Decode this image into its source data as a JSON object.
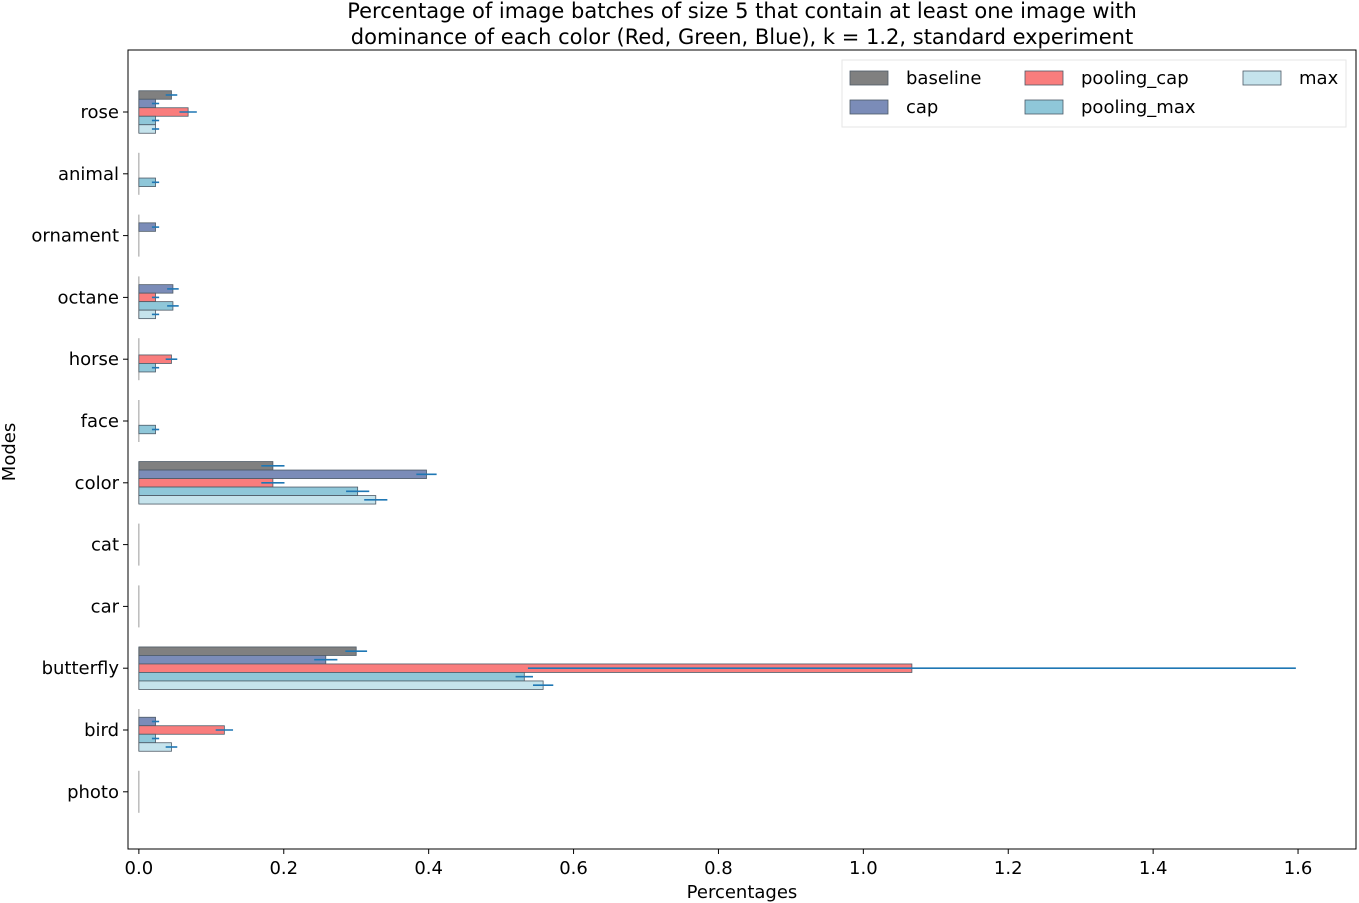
{
  "chart_data": {
    "type": "bar",
    "orientation": "horizontal",
    "title": "Percentage of image batches of size 5 that contain at least one image with dominance of each color (Red, Green, Blue), k = 1.2, standard experiment",
    "title_lines": [
      "Percentage of image batches of size 5 that contain at least one image with",
      "dominance of each color (Red, Green, Blue), k = 1.2, standard experiment"
    ],
    "xlabel": "Percentages",
    "ylabel": "Modes",
    "xlim": [
      -0.015,
      1.68
    ],
    "xticks": [
      0.0,
      0.2,
      0.4,
      0.6,
      0.8,
      1.0,
      1.2,
      1.4,
      1.6
    ],
    "xtick_labels": [
      "0.0",
      "0.2",
      "0.4",
      "0.6",
      "0.8",
      "1.0",
      "1.2",
      "1.4",
      "1.6"
    ],
    "grid": false,
    "legend_position": "top-right",
    "legend_columns": 3,
    "categories": [
      "rose",
      "animal",
      "ornament",
      "octane",
      "horse",
      "face",
      "color",
      "cat",
      "car",
      "butterfly",
      "bird",
      "photo"
    ],
    "series": [
      {
        "name": "baseline",
        "color": "#808080",
        "values": [
          0.045,
          0,
          0,
          0,
          0,
          0,
          0.185,
          0,
          0,
          0.3,
          0,
          0
        ],
        "errors": [
          0.008,
          0,
          0,
          0,
          0,
          0,
          0.016,
          0,
          0,
          0.015,
          0,
          0
        ]
      },
      {
        "name": "cap",
        "color": "#7b8cb8",
        "values": [
          0.023,
          0,
          0.023,
          0.047,
          0,
          0,
          0.397,
          0,
          0,
          0.258,
          0.023,
          0
        ],
        "errors": [
          0.005,
          0,
          0.005,
          0.008,
          0,
          0,
          0.014,
          0,
          0,
          0.016,
          0.005,
          0
        ]
      },
      {
        "name": "pooling_cap",
        "color": "#f97d7d",
        "values": [
          0.068,
          0,
          0,
          0.023,
          0.045,
          0,
          0.185,
          0,
          0,
          1.067,
          0.118,
          0
        ],
        "errors": [
          0.012,
          0,
          0,
          0.005,
          0.008,
          0,
          0.016,
          0,
          0,
          0.53,
          0.012,
          0
        ]
      },
      {
        "name": "pooling_max",
        "color": "#8fc7d9",
        "values": [
          0.023,
          0.023,
          0,
          0.047,
          0.023,
          0.023,
          0.302,
          0,
          0,
          0.532,
          0.023,
          0
        ],
        "errors": [
          0.005,
          0.005,
          0,
          0.008,
          0.005,
          0.005,
          0.016,
          0,
          0,
          0.012,
          0.005,
          0
        ]
      },
      {
        "name": "max",
        "color": "#c5e3ec",
        "values": [
          0.023,
          0,
          0,
          0.023,
          0,
          0,
          0.327,
          0,
          0,
          0.558,
          0.045,
          0
        ],
        "errors": [
          0.005,
          0,
          0,
          0.005,
          0,
          0,
          0.016,
          0,
          0,
          0.014,
          0.008,
          0
        ]
      }
    ],
    "error_bar_color": "#1f77b4",
    "bar_edge_color": "#4d5a66"
  }
}
